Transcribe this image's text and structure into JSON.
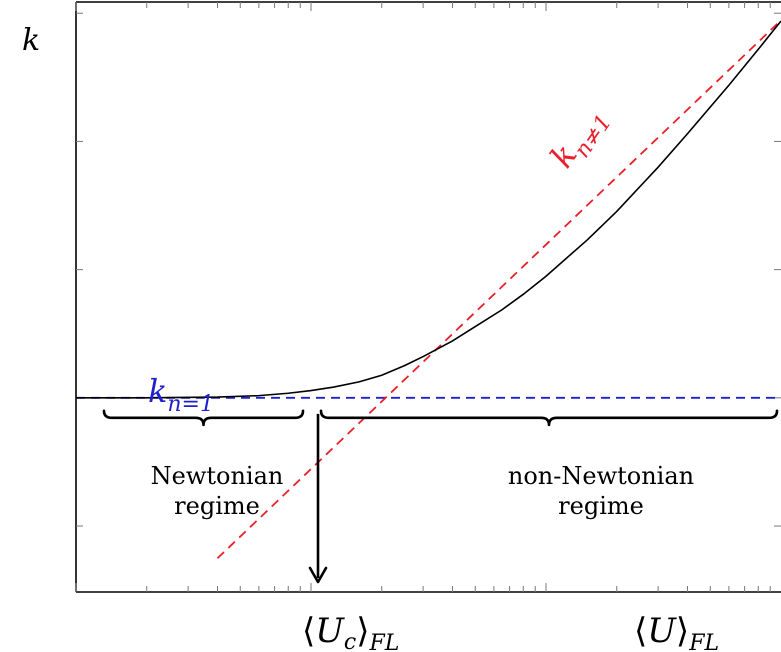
{
  "chart_data": {
    "type": "line",
    "title": "",
    "x_scale": "log",
    "y_scale": "log",
    "xlabel_parts": {
      "open": "⟨",
      "symbol": "U",
      "close": "⟩",
      "sub": "FL"
    },
    "ylabel": "k",
    "x_tick_labels": [
      {
        "at": "Uc",
        "open": "⟨",
        "symbol": "U",
        "sub_in": "c",
        "close": "⟩",
        "sub": "FL"
      }
    ],
    "series": [
      {
        "key": "model",
        "style": "solid",
        "color": "#000000",
        "x": [
          0.1,
          0.2,
          0.4,
          0.6,
          0.8,
          1.0,
          1.25,
          1.6,
          2,
          2.5,
          3,
          4,
          5,
          6.5,
          8,
          10,
          15,
          20,
          30,
          40,
          60,
          80,
          100
        ],
        "y": [
          1.0,
          1.0,
          1.004,
          1.012,
          1.025,
          1.04,
          1.06,
          1.09,
          1.13,
          1.19,
          1.25,
          1.36,
          1.47,
          1.61,
          1.75,
          1.93,
          2.35,
          2.74,
          3.48,
          4.17,
          5.42,
          6.58,
          7.67
        ]
      },
      {
        "key": "newtonian",
        "name": "k_{n=1}",
        "label_main": "k",
        "label_sub": "n=1",
        "style": "dashed",
        "color": "#1f1fd0",
        "x": [
          0.1,
          100
        ],
        "y": [
          1.0,
          1.0
        ]
      },
      {
        "key": "powerlaw",
        "name": "k_{n≠1}",
        "label_main": "k",
        "label_sub": "n≠1",
        "style": "dashed",
        "color": "#e8202a",
        "x": [
          0.4,
          100
        ],
        "y": [
          0.42,
          7.7
        ]
      }
    ],
    "critical_point": {
      "x": 1.0,
      "y": 1.0,
      "arrow": "down"
    },
    "regions": [
      {
        "key": "newtonian",
        "label_lines": [
          "Newtonian",
          "regime"
        ],
        "x_from": 0.1,
        "x_to": 1.0
      },
      {
        "key": "non_newtonian",
        "label_lines": [
          "non-Newtonian",
          "regime"
        ],
        "x_from": 1.0,
        "x_to": 100
      }
    ],
    "xlim": [
      0.1,
      100
    ],
    "ylim": [
      0.35,
      8.5
    ],
    "grid": false,
    "legend": "none"
  }
}
